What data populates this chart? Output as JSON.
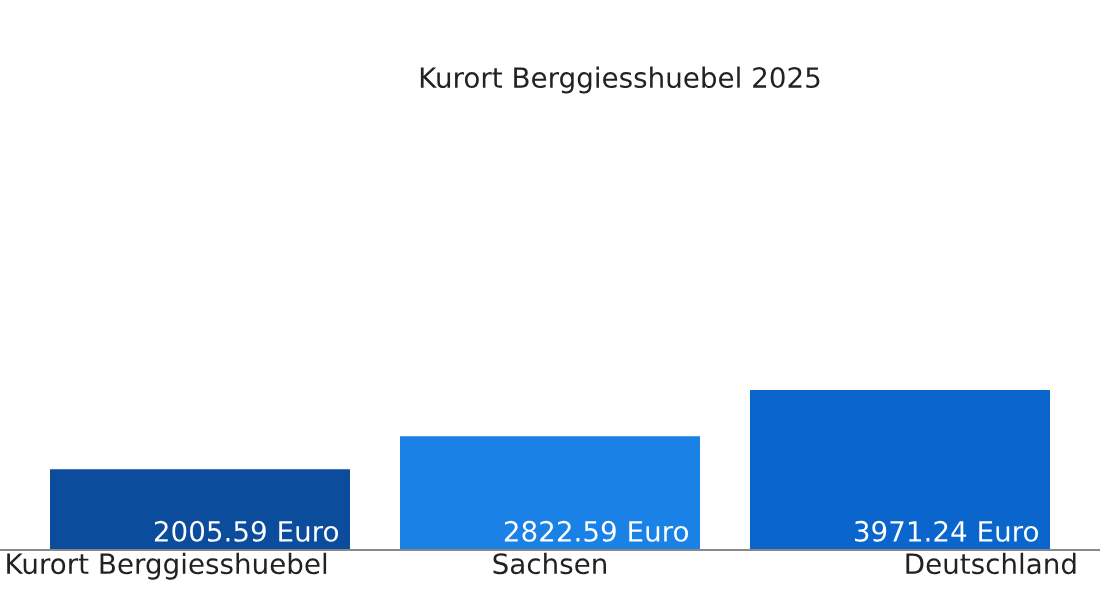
{
  "chart_data": {
    "type": "bar",
    "title": "Kurort Berggiesshuebel 2025",
    "categories": [
      "Kurort Berggiesshuebel",
      "Sachsen",
      "Deutschland"
    ],
    "values": [
      2005.59,
      2822.59,
      3971.24
    ],
    "colors": [
      "#0b4d9c",
      "#1a82e6",
      "#0a66cc"
    ],
    "value_labels": [
      "2005.59 Euro",
      "2822.59 Euro",
      "3971.24 Euro"
    ],
    "tick_labels": "x"
  }
}
